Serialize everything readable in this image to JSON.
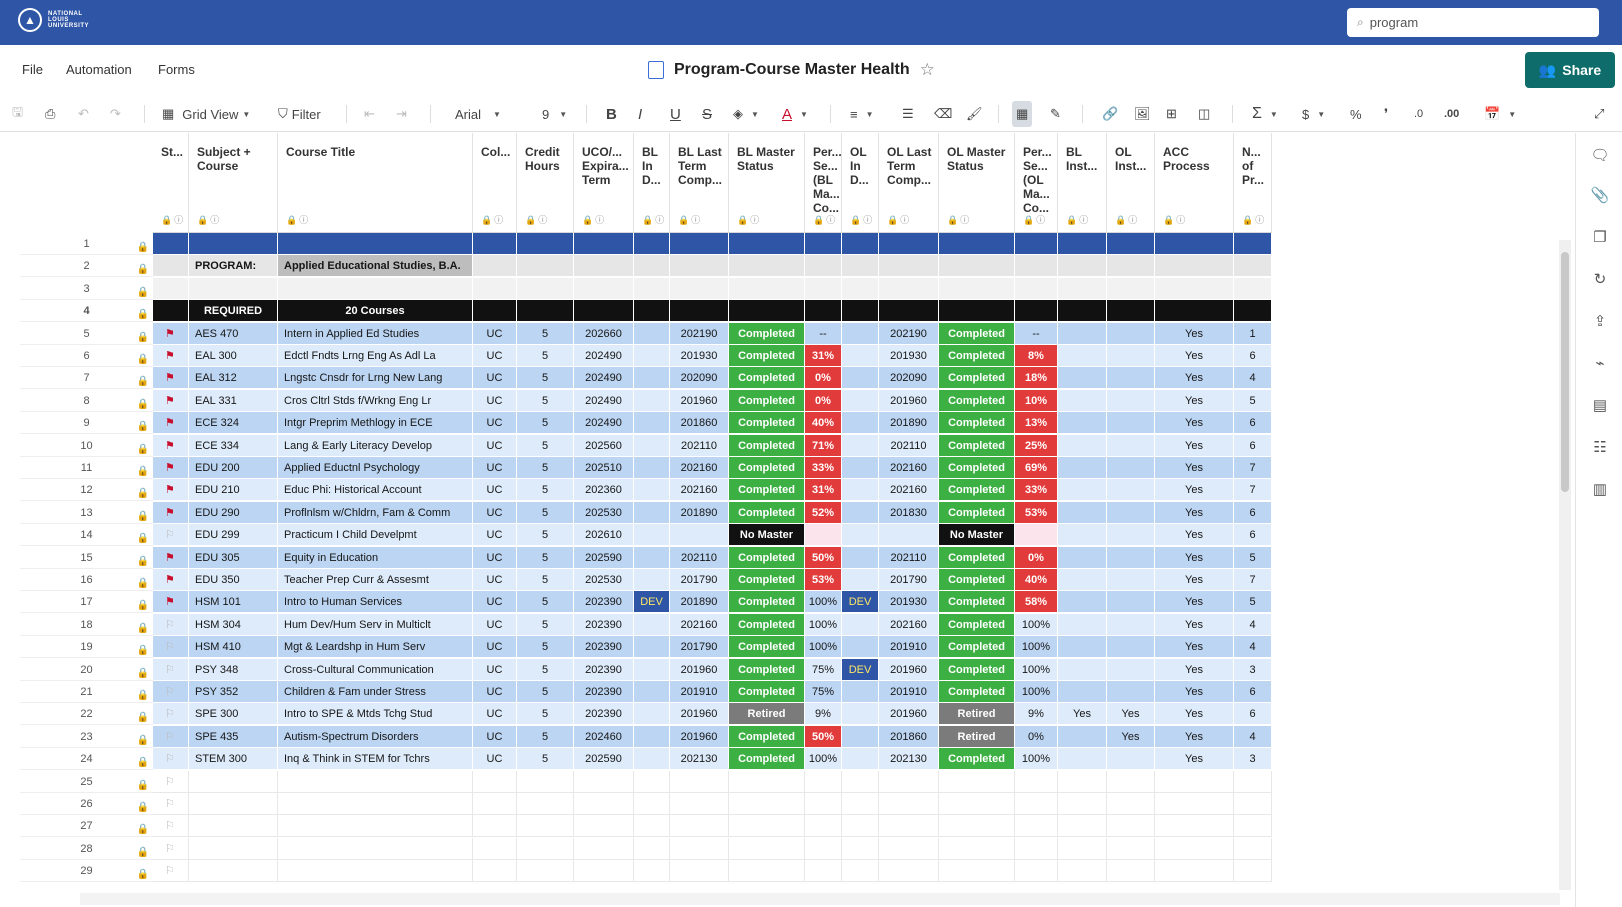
{
  "brand": {
    "logo_text": "NATIONAL LOUIS UNIVERSITY"
  },
  "search": {
    "value": "program",
    "placeholder": "Search"
  },
  "menu": [
    "File",
    "Automation",
    "Forms"
  ],
  "document": {
    "title": "Program-Course Master Health"
  },
  "share_label": "Share",
  "toolbar": {
    "view_label": "Grid View",
    "filter_label": "Filter",
    "font": "Arial",
    "font_size": "9"
  },
  "columns": [
    {
      "key": "st",
      "label": "St..."
    },
    {
      "key": "subject",
      "label": "Subject + Course"
    },
    {
      "key": "title",
      "label": "Course Title"
    },
    {
      "key": "col",
      "label": "Col..."
    },
    {
      "key": "credit",
      "label": "Credit Hours"
    },
    {
      "key": "uco",
      "label": "UCO/... Expira... Term"
    },
    {
      "key": "blin",
      "label": "BL In D..."
    },
    {
      "key": "bllast",
      "label": "BL Last Term Comp..."
    },
    {
      "key": "blmaster",
      "label": "BL Master Status"
    },
    {
      "key": "perbl",
      "label": "Per... Se... (BL Ma... Co..."
    },
    {
      "key": "olin",
      "label": "OL In D..."
    },
    {
      "key": "ollast",
      "label": "OL Last Term Comp..."
    },
    {
      "key": "olmaster",
      "label": "OL Master Status"
    },
    {
      "key": "perol",
      "label": "Per... Se... (OL Ma... Co..."
    },
    {
      "key": "blinst",
      "label": "BL Inst..."
    },
    {
      "key": "olinst",
      "label": "OL Inst..."
    },
    {
      "key": "acc",
      "label": "ACC Process"
    },
    {
      "key": "num",
      "label": "N... of Pr..."
    }
  ],
  "program_row": {
    "label": "PROGRAM:",
    "value": "Applied Educational Studies, B.A."
  },
  "required_row": {
    "label": "REQUIRED",
    "value": "20 Courses"
  },
  "courses": [
    {
      "n": 5,
      "flag": true,
      "subj": "AES 470",
      "title": "Intern in Applied Ed Studies",
      "col": "UC",
      "cr": "5",
      "uco": "202660",
      "blin": "",
      "bllast": "202190",
      "blm": "Completed",
      "perbl": "--",
      "olin": "",
      "ollast": "202190",
      "olm": "Completed",
      "perol": "--",
      "blinst": "",
      "olinst": "",
      "acc": "Yes",
      "num": "1"
    },
    {
      "n": 6,
      "flag": true,
      "subj": "EAL 300",
      "title": "Edctl Fndts Lrng Eng As Adl La",
      "col": "UC",
      "cr": "5",
      "uco": "202490",
      "blin": "",
      "bllast": "201930",
      "blm": "Completed",
      "perbl": "31%",
      "olin": "",
      "ollast": "201930",
      "olm": "Completed",
      "perol": "8%",
      "blinst": "",
      "olinst": "",
      "acc": "Yes",
      "num": "6"
    },
    {
      "n": 7,
      "flag": true,
      "subj": "EAL 312",
      "title": "Lngstc Cnsdr for Lrng New Lang",
      "col": "UC",
      "cr": "5",
      "uco": "202490",
      "blin": "",
      "bllast": "202090",
      "blm": "Completed",
      "perbl": "0%",
      "olin": "",
      "ollast": "202090",
      "olm": "Completed",
      "perol": "18%",
      "blinst": "",
      "olinst": "",
      "acc": "Yes",
      "num": "4"
    },
    {
      "n": 8,
      "flag": true,
      "subj": "EAL 331",
      "title": "Cros Cltrl Stds f/Wrkng Eng Lr",
      "col": "UC",
      "cr": "5",
      "uco": "202490",
      "blin": "",
      "bllast": "201960",
      "blm": "Completed",
      "perbl": "0%",
      "olin": "",
      "ollast": "201960",
      "olm": "Completed",
      "perol": "10%",
      "blinst": "",
      "olinst": "",
      "acc": "Yes",
      "num": "5"
    },
    {
      "n": 9,
      "flag": true,
      "subj": "ECE 324",
      "title": "Intgr Preprim Methlogy in ECE",
      "col": "UC",
      "cr": "5",
      "uco": "202490",
      "blin": "",
      "bllast": "201860",
      "blm": "Completed",
      "perbl": "40%",
      "olin": "",
      "ollast": "201890",
      "olm": "Completed",
      "perol": "13%",
      "blinst": "",
      "olinst": "",
      "acc": "Yes",
      "num": "6"
    },
    {
      "n": 10,
      "flag": true,
      "subj": "ECE 334",
      "title": "Lang & Early Literacy Develop",
      "col": "UC",
      "cr": "5",
      "uco": "202560",
      "blin": "",
      "bllast": "202110",
      "blm": "Completed",
      "perbl": "71%",
      "olin": "",
      "ollast": "202110",
      "olm": "Completed",
      "perol": "25%",
      "blinst": "",
      "olinst": "",
      "acc": "Yes",
      "num": "6"
    },
    {
      "n": 11,
      "flag": true,
      "subj": "EDU 200",
      "title": "Applied Eductnl Psychology",
      "col": "UC",
      "cr": "5",
      "uco": "202510",
      "blin": "",
      "bllast": "202160",
      "blm": "Completed",
      "perbl": "33%",
      "olin": "",
      "ollast": "202160",
      "olm": "Completed",
      "perol": "69%",
      "blinst": "",
      "olinst": "",
      "acc": "Yes",
      "num": "7"
    },
    {
      "n": 12,
      "flag": true,
      "subj": "EDU 210",
      "title": "Educ Phi: Historical Account",
      "col": "UC",
      "cr": "5",
      "uco": "202360",
      "blin": "",
      "bllast": "202160",
      "blm": "Completed",
      "perbl": "31%",
      "olin": "",
      "ollast": "202160",
      "olm": "Completed",
      "perol": "33%",
      "blinst": "",
      "olinst": "",
      "acc": "Yes",
      "num": "7"
    },
    {
      "n": 13,
      "flag": true,
      "subj": "EDU 290",
      "title": "Proflnlsm w/Chldrn, Fam & Comm",
      "col": "UC",
      "cr": "5",
      "uco": "202530",
      "blin": "",
      "bllast": "201890",
      "blm": "Completed",
      "perbl": "52%",
      "olin": "",
      "ollast": "201830",
      "olm": "Completed",
      "perol": "53%",
      "blinst": "",
      "olinst": "",
      "acc": "Yes",
      "num": "6"
    },
    {
      "n": 14,
      "flag": false,
      "subj": "EDU 299",
      "title": "Practicum I Child Develpmt",
      "col": "UC",
      "cr": "5",
      "uco": "202610",
      "blin": "",
      "bllast": "",
      "blm": "No Master",
      "perbl": "",
      "olin": "",
      "ollast": "",
      "olm": "No Master",
      "perol": "",
      "blinst": "",
      "olinst": "",
      "acc": "Yes",
      "num": "6"
    },
    {
      "n": 15,
      "flag": true,
      "subj": "EDU 305",
      "title": "Equity in Education",
      "col": "UC",
      "cr": "5",
      "uco": "202590",
      "blin": "",
      "bllast": "202110",
      "blm": "Completed",
      "perbl": "50%",
      "olin": "",
      "ollast": "202110",
      "olm": "Completed",
      "perol": "0%",
      "blinst": "",
      "olinst": "",
      "acc": "Yes",
      "num": "5"
    },
    {
      "n": 16,
      "flag": true,
      "subj": "EDU 350",
      "title": "Teacher Prep Curr & Assesmt",
      "col": "UC",
      "cr": "5",
      "uco": "202530",
      "blin": "",
      "bllast": "201790",
      "blm": "Completed",
      "perbl": "53%",
      "olin": "",
      "ollast": "201790",
      "olm": "Completed",
      "perol": "40%",
      "blinst": "",
      "olinst": "",
      "acc": "Yes",
      "num": "7"
    },
    {
      "n": 17,
      "flag": true,
      "subj": "HSM 101",
      "title": "Intro to Human Services",
      "col": "UC",
      "cr": "5",
      "uco": "202390",
      "blin": "DEV",
      "bllast": "201890",
      "blm": "Completed",
      "perbl": "100%",
      "olin": "DEV",
      "ollast": "201930",
      "olm": "Completed",
      "perol": "58%",
      "blinst": "",
      "olinst": "",
      "acc": "Yes",
      "num": "5"
    },
    {
      "n": 18,
      "flag": false,
      "subj": "HSM 304",
      "title": "Hum Dev/Hum Serv in Multiclt",
      "col": "UC",
      "cr": "5",
      "uco": "202390",
      "blin": "",
      "bllast": "202160",
      "blm": "Completed",
      "perbl": "100%",
      "olin": "",
      "ollast": "202160",
      "olm": "Completed",
      "perol": "100%",
      "blinst": "",
      "olinst": "",
      "acc": "Yes",
      "num": "4"
    },
    {
      "n": 19,
      "flag": false,
      "subj": "HSM 410",
      "title": "Mgt & Leardshp in Hum Serv",
      "col": "UC",
      "cr": "5",
      "uco": "202390",
      "blin": "",
      "bllast": "201790",
      "blm": "Completed",
      "perbl": "100%",
      "olin": "",
      "ollast": "201910",
      "olm": "Completed",
      "perol": "100%",
      "blinst": "",
      "olinst": "",
      "acc": "Yes",
      "num": "4"
    },
    {
      "n": 20,
      "flag": false,
      "subj": "PSY 348",
      "title": "Cross-Cultural Communication",
      "col": "UC",
      "cr": "5",
      "uco": "202390",
      "blin": "",
      "bllast": "201960",
      "blm": "Completed",
      "perbl": "75%",
      "olin": "DEV",
      "ollast": "201960",
      "olm": "Completed",
      "perol": "100%",
      "blinst": "",
      "olinst": "",
      "acc": "Yes",
      "num": "3"
    },
    {
      "n": 21,
      "flag": false,
      "subj": "PSY 352",
      "title": "Children & Fam under Stress",
      "col": "UC",
      "cr": "5",
      "uco": "202390",
      "blin": "",
      "bllast": "201910",
      "blm": "Completed",
      "perbl": "75%",
      "olin": "",
      "ollast": "201910",
      "olm": "Completed",
      "perol": "100%",
      "blinst": "",
      "olinst": "",
      "acc": "Yes",
      "num": "6"
    },
    {
      "n": 22,
      "flag": false,
      "subj": "SPE 300",
      "title": "Intro to SPE & Mtds Tchg Stud",
      "col": "UC",
      "cr": "5",
      "uco": "202390",
      "blin": "",
      "bllast": "201960",
      "blm": "Retired",
      "perbl": "9%",
      "olin": "",
      "ollast": "201960",
      "olm": "Retired",
      "perol": "9%",
      "blinst": "Yes",
      "olinst": "Yes",
      "acc": "Yes",
      "num": "6"
    },
    {
      "n": 23,
      "flag": false,
      "subj": "SPE 435",
      "title": "Autism-Spectrum Disorders",
      "col": "UC",
      "cr": "5",
      "uco": "202460",
      "blin": "",
      "bllast": "201960",
      "blm": "Completed",
      "perbl": "50%",
      "olin": "",
      "ollast": "201860",
      "olm": "Retired",
      "perol": "0%",
      "blinst": "",
      "olinst": "Yes",
      "acc": "Yes",
      "num": "4"
    },
    {
      "n": 24,
      "flag": false,
      "subj": "STEM 300",
      "title": "Inq & Think in STEM for Tchrs",
      "col": "UC",
      "cr": "5",
      "uco": "202590",
      "blin": "",
      "bllast": "202130",
      "blm": "Completed",
      "perbl": "100%",
      "olin": "",
      "ollast": "202130",
      "olm": "Completed",
      "perol": "100%",
      "blinst": "",
      "olinst": "",
      "acc": "Yes",
      "num": "3"
    }
  ],
  "empty_rows": [
    25,
    26,
    27,
    28,
    29
  ],
  "special_rows": [
    1,
    2,
    3,
    4
  ],
  "colors": {
    "topbar": "#2f56a6",
    "share": "#0e6d6a",
    "completed": "#3cb043",
    "red": "#e23b3b",
    "retired": "#7b7b7b",
    "row_blue": "#bcd5f2",
    "row_light": "#deebfa"
  }
}
